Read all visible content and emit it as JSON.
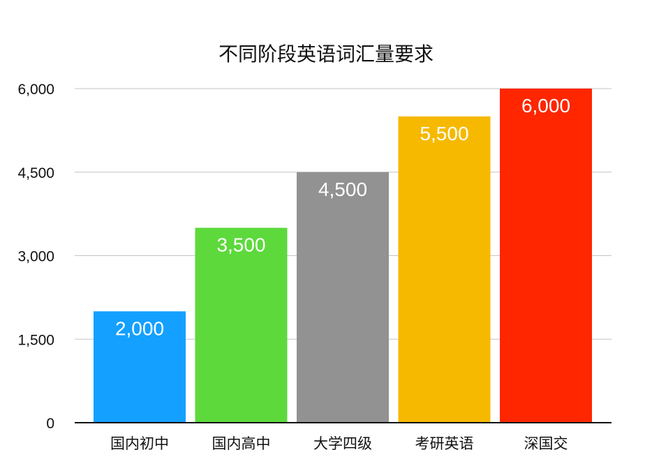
{
  "chart_data": {
    "type": "bar",
    "title": "不同阶段英语词汇量要求",
    "xlabel": "",
    "ylabel": "",
    "categories": [
      "国内初中",
      "国内高中",
      "大学四级",
      "考研英语",
      "深国交"
    ],
    "values": [
      2000,
      3500,
      4500,
      5500,
      6000
    ],
    "data_labels": [
      "2,000",
      "3,500",
      "4,500",
      "5,500",
      "6,000"
    ],
    "colors": [
      "#14a0ff",
      "#5dd93c",
      "#929292",
      "#f6b900",
      "#ff2600"
    ],
    "ylim": [
      0,
      6000
    ],
    "yticks": [
      0,
      1500,
      3000,
      4500,
      6000
    ],
    "ytick_labels": [
      "0",
      "1,500",
      "3,000",
      "4,500",
      "6,000"
    ],
    "grid": true,
    "gridline_color": "#c4c4c4",
    "axis_color": "#111111"
  }
}
